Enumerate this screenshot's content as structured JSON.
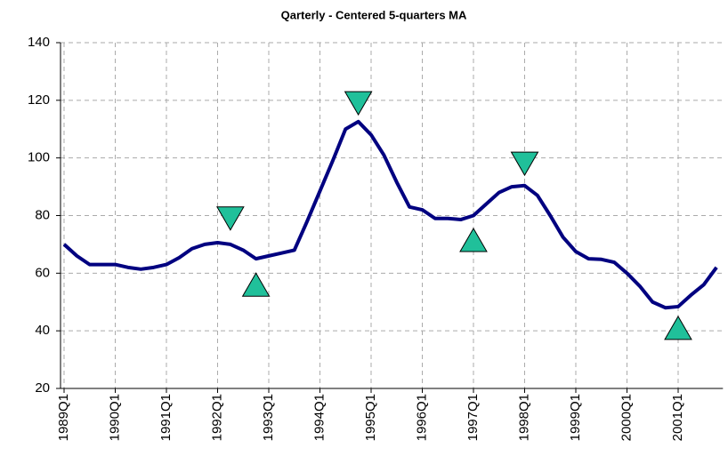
{
  "chart_data": {
    "type": "line",
    "title": "Qarterly - Centered 5-quarters MA",
    "categories": [
      "1989Q1",
      null,
      null,
      null,
      "1990Q1",
      null,
      null,
      null,
      "1991Q1",
      null,
      null,
      null,
      "1992Q1",
      null,
      null,
      null,
      "1993Q1",
      null,
      null,
      null,
      "1994Q1",
      null,
      null,
      null,
      "1995Q1",
      null,
      null,
      null,
      "1996Q1",
      null,
      null,
      null,
      "1997Q1",
      null,
      null,
      null,
      "1998Q1",
      null,
      null,
      null,
      "1999Q1",
      null,
      null,
      null,
      "2000Q1",
      null,
      null,
      null,
      "2001Q1",
      null,
      null,
      null
    ],
    "series": [
      {
        "color": "#000080",
        "values": [
          70,
          66,
          63,
          63,
          63,
          62,
          61.4,
          62,
          63,
          65.4,
          68.5,
          70,
          70.6,
          70,
          68,
          65,
          66,
          67,
          68,
          78,
          88.5,
          99,
          110,
          112.6,
          108,
          101,
          91.6,
          83,
          82,
          79,
          79,
          78.6,
          80,
          84,
          88,
          90,
          90.4,
          87,
          80,
          72.5,
          67.5,
          65,
          64.8,
          63.8,
          60,
          55.5,
          50,
          48,
          48.4,
          52.4,
          56,
          62
        ]
      },
      {
        "color": "#20c09a",
        "marker": "triangle-down",
        "values": [
          null,
          null,
          null,
          null,
          null,
          null,
          null,
          null,
          null,
          null,
          null,
          null,
          null,
          79,
          null,
          null,
          null,
          null,
          null,
          null,
          null,
          null,
          null,
          119,
          null,
          null,
          null,
          null,
          null,
          null,
          null,
          null,
          null,
          null,
          null,
          null,
          98,
          null,
          null,
          null,
          null,
          null,
          null,
          null,
          null,
          null,
          null,
          null,
          null,
          null,
          null,
          null
        ]
      },
      {
        "color": "#20c09a",
        "marker": "triangle-up",
        "values": [
          null,
          null,
          null,
          null,
          null,
          null,
          null,
          null,
          null,
          null,
          null,
          null,
          null,
          null,
          null,
          56,
          null,
          null,
          null,
          null,
          null,
          null,
          null,
          null,
          null,
          null,
          null,
          null,
          null,
          null,
          null,
          null,
          71.5,
          null,
          null,
          null,
          null,
          null,
          null,
          null,
          null,
          null,
          null,
          null,
          null,
          null,
          null,
          null,
          41,
          null,
          null,
          null
        ]
      }
    ],
    "ylim": [
      20,
      140
    ],
    "yticks": [
      20,
      40,
      60,
      80,
      100,
      120,
      140
    ],
    "grid": true
  }
}
